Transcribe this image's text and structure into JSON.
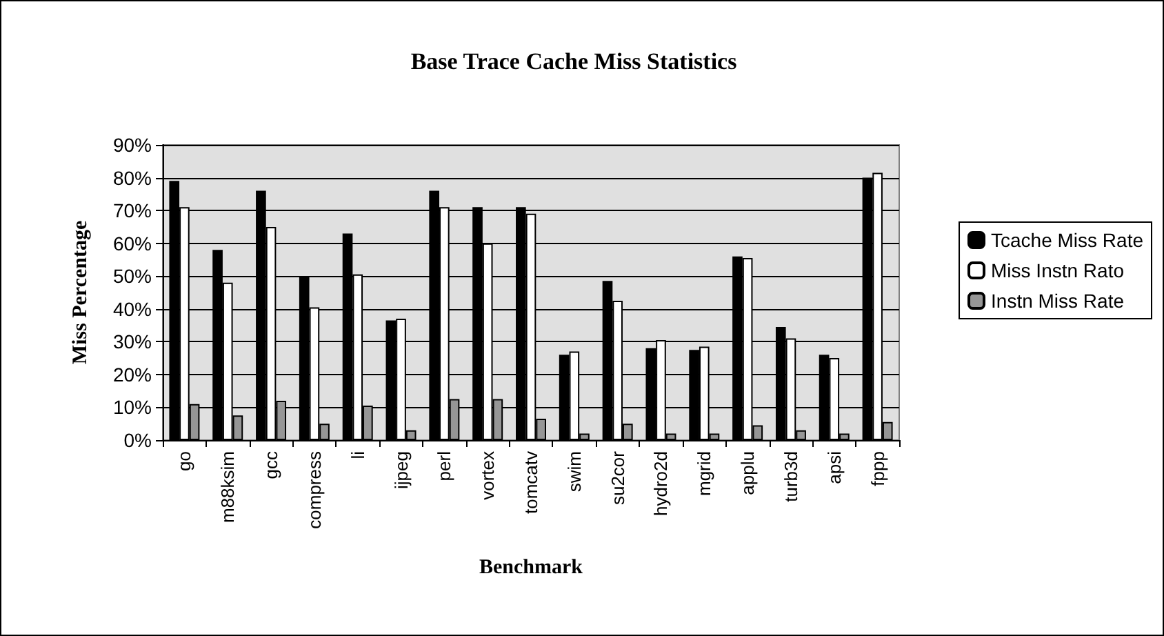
{
  "chart_data": {
    "type": "bar",
    "title": "Base Trace Cache Miss Statistics",
    "xlabel": "Benchmark",
    "ylabel": "Miss Percentage",
    "categories": [
      "go",
      "m88ksim",
      "gcc",
      "compress",
      "li",
      "ijpeg",
      "perl",
      "vortex",
      "tomcatv",
      "swim",
      "su2cor",
      "hydro2d",
      "mgrid",
      "applu",
      "turb3d",
      "apsi",
      "fppp"
    ],
    "series": [
      {
        "name": "Tcache Miss Rate",
        "color": "#000000",
        "values": [
          79,
          58,
          76,
          50,
          63,
          36.5,
          76,
          71,
          71,
          26,
          48.5,
          28,
          27.5,
          56,
          34.5,
          26,
          80
        ]
      },
      {
        "name": "Miss Instn Rato",
        "color": "#ffffff",
        "values": [
          71,
          48,
          65,
          40.5,
          50.5,
          37,
          71,
          60,
          69,
          27,
          42.5,
          30.5,
          28.5,
          55.5,
          31,
          25,
          81.5
        ]
      },
      {
        "name": "Instn Miss Rate",
        "color": "#969696",
        "values": [
          11,
          7.5,
          12,
          5,
          10.5,
          3,
          12.5,
          12.5,
          6.5,
          2,
          5,
          2,
          2,
          4.5,
          3,
          2,
          5.5
        ]
      }
    ],
    "ylim": [
      0,
      90
    ],
    "yticks": [
      {
        "value": 0,
        "label": "0%"
      },
      {
        "value": 10,
        "label": "10%"
      },
      {
        "value": 20,
        "label": "20%"
      },
      {
        "value": 30,
        "label": "30%"
      },
      {
        "value": 40,
        "label": "40%"
      },
      {
        "value": 50,
        "label": "50%"
      },
      {
        "value": 60,
        "label": "60%"
      },
      {
        "value": 70,
        "label": "70%"
      },
      {
        "value": 80,
        "label": "80%"
      },
      {
        "value": 90,
        "label": "90%"
      }
    ],
    "grid": "y",
    "legend": "right"
  }
}
